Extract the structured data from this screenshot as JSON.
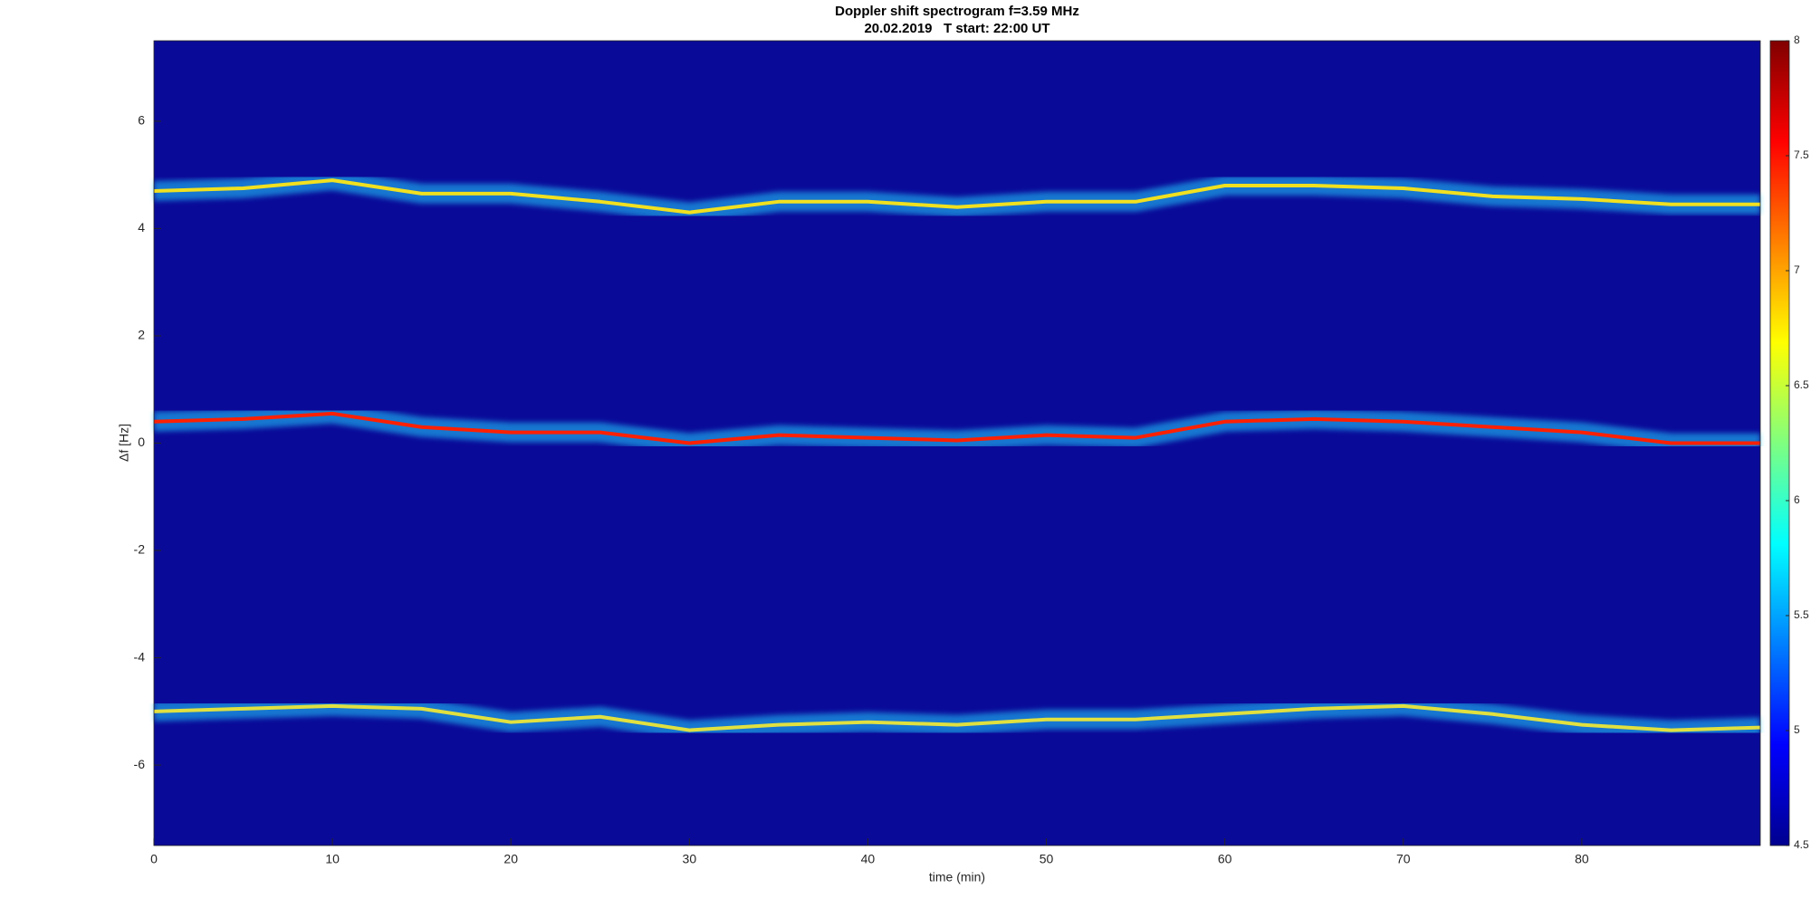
{
  "chart_data": {
    "type": "spectrogram",
    "title": "Doppler shift spectrogram f=3.59 MHz",
    "subtitle": "20.02.2019   T start: 22:00 UT",
    "x_label": "time (min)",
    "y_label": "Δf [Hz]",
    "x": [
      0,
      5,
      10,
      15,
      20,
      25,
      30,
      35,
      40,
      45,
      50,
      55,
      60,
      65,
      70,
      75,
      80,
      85,
      90
    ],
    "series": [
      {
        "color": "#f0e020",
        "values": [
          4.7,
          4.75,
          4.9,
          4.65,
          4.65,
          4.5,
          4.3,
          4.5,
          4.5,
          4.4,
          4.5,
          4.5,
          4.8,
          4.8,
          4.75,
          4.6,
          4.55,
          4.45,
          4.45
        ]
      },
      {
        "color": "#ff2000",
        "values": [
          0.4,
          0.45,
          0.55,
          0.3,
          0.2,
          0.2,
          0.0,
          0.15,
          0.1,
          0.05,
          0.15,
          0.1,
          0.4,
          0.45,
          0.4,
          0.3,
          0.2,
          0.0,
          0.0
        ]
      },
      {
        "color": "#e0e040",
        "values": [
          -5.0,
          -4.95,
          -4.9,
          -4.95,
          -5.2,
          -5.1,
          -5.35,
          -5.25,
          -5.2,
          -5.25,
          -5.15,
          -5.15,
          -5.05,
          -4.95,
          -4.9,
          -5.05,
          -5.25,
          -5.35,
          -5.3
        ]
      }
    ],
    "xlim": [
      0,
      90
    ],
    "xticks": [
      0,
      10,
      20,
      30,
      40,
      50,
      60,
      70,
      80
    ],
    "ylim": [
      -7.5,
      7.5
    ],
    "yticks": [
      -6,
      -4,
      -2,
      0,
      2,
      4,
      6
    ],
    "clim": [
      4.5,
      8
    ],
    "cticks": [
      4.5,
      5,
      5.5,
      6,
      6.5,
      7,
      7.5,
      8
    ],
    "grid": false
  }
}
